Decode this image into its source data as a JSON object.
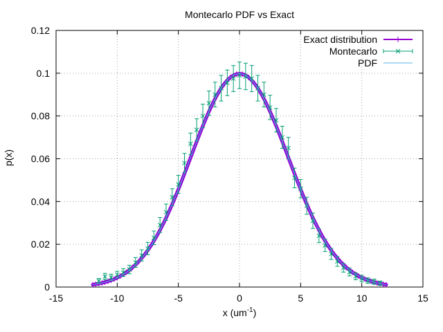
{
  "chart_data": {
    "type": "line",
    "title": "Montecarlo PDF vs Exact",
    "xlabel": "x (um",
    "xlabel_sup": "-1",
    "xlabel_close": ")",
    "ylabel": "p(x)",
    "xlim": [
      -15,
      15
    ],
    "ylim": [
      0,
      0.12
    ],
    "xticks": [
      -15,
      -10,
      -5,
      0,
      5,
      10,
      15
    ],
    "yticks": [
      0,
      0.02,
      0.04,
      0.06,
      0.08,
      0.1,
      0.12
    ],
    "xtick_labels": [
      "-15",
      "-10",
      "-5",
      "0",
      "5",
      "10",
      "15"
    ],
    "ytick_labels": [
      "0",
      "0.02",
      "0.04",
      "0.06",
      "0.08",
      "0.1",
      "0.12"
    ],
    "grid": true,
    "legend_position": "top-right",
    "series": [
      {
        "name": "Exact distribution",
        "kind": "exact",
        "color": "#9400d3",
        "distribution": "gaussian",
        "mean": 0,
        "sigma": 4,
        "x_range": [
          -12,
          12
        ]
      },
      {
        "name": "Montecarlo",
        "kind": "montecarlo",
        "color": "#009e73",
        "x": [
          -11.5,
          -11.0,
          -10.5,
          -10.0,
          -9.5,
          -9.0,
          -8.5,
          -8.0,
          -7.5,
          -7.0,
          -6.5,
          -6.0,
          -5.5,
          -5.0,
          -4.5,
          -4.0,
          -3.5,
          -3.0,
          -2.5,
          -2.0,
          -1.5,
          -1.0,
          -0.5,
          0.0,
          0.5,
          1.0,
          1.5,
          2.0,
          2.5,
          3.0,
          3.5,
          4.0,
          4.5,
          5.0,
          5.5,
          6.0,
          6.5,
          7.0,
          7.5,
          8.0,
          8.5,
          9.0,
          9.5,
          10.0,
          10.5,
          11.0,
          11.5
        ],
        "y": [
          0.0028,
          0.0049,
          0.0045,
          0.0058,
          0.0068,
          0.0082,
          0.0115,
          0.0148,
          0.018,
          0.023,
          0.029,
          0.035,
          0.042,
          0.048,
          0.058,
          0.067,
          0.0735,
          0.08,
          0.086,
          0.09,
          0.093,
          0.0955,
          0.0975,
          0.099,
          0.0985,
          0.0975,
          0.093,
          0.09,
          0.084,
          0.078,
          0.07,
          0.065,
          0.051,
          0.046,
          0.038,
          0.031,
          0.024,
          0.0195,
          0.0155,
          0.012,
          0.009,
          0.007,
          0.005,
          0.004,
          0.003,
          0.0025,
          0.0018
        ],
        "err": [
          0.0012,
          0.0015,
          0.0015,
          0.0016,
          0.0018,
          0.002,
          0.0023,
          0.0026,
          0.0029,
          0.0032,
          0.0035,
          0.0038,
          0.004,
          0.0042,
          0.0045,
          0.005,
          0.0052,
          0.0055,
          0.0057,
          0.0058,
          0.006,
          0.006,
          0.0061,
          0.0062,
          0.0062,
          0.0061,
          0.006,
          0.0058,
          0.0057,
          0.0055,
          0.0052,
          0.005,
          0.0046,
          0.0043,
          0.004,
          0.0036,
          0.0032,
          0.0029,
          0.0026,
          0.0023,
          0.002,
          0.0018,
          0.0016,
          0.0015,
          0.0013,
          0.0012,
          0.001
        ]
      },
      {
        "name": "PDF",
        "kind": "pdf",
        "color": "#56b4e9",
        "distribution": "gaussian",
        "mean": 0,
        "sigma": 4,
        "x_range": [
          -12,
          12
        ]
      }
    ]
  }
}
